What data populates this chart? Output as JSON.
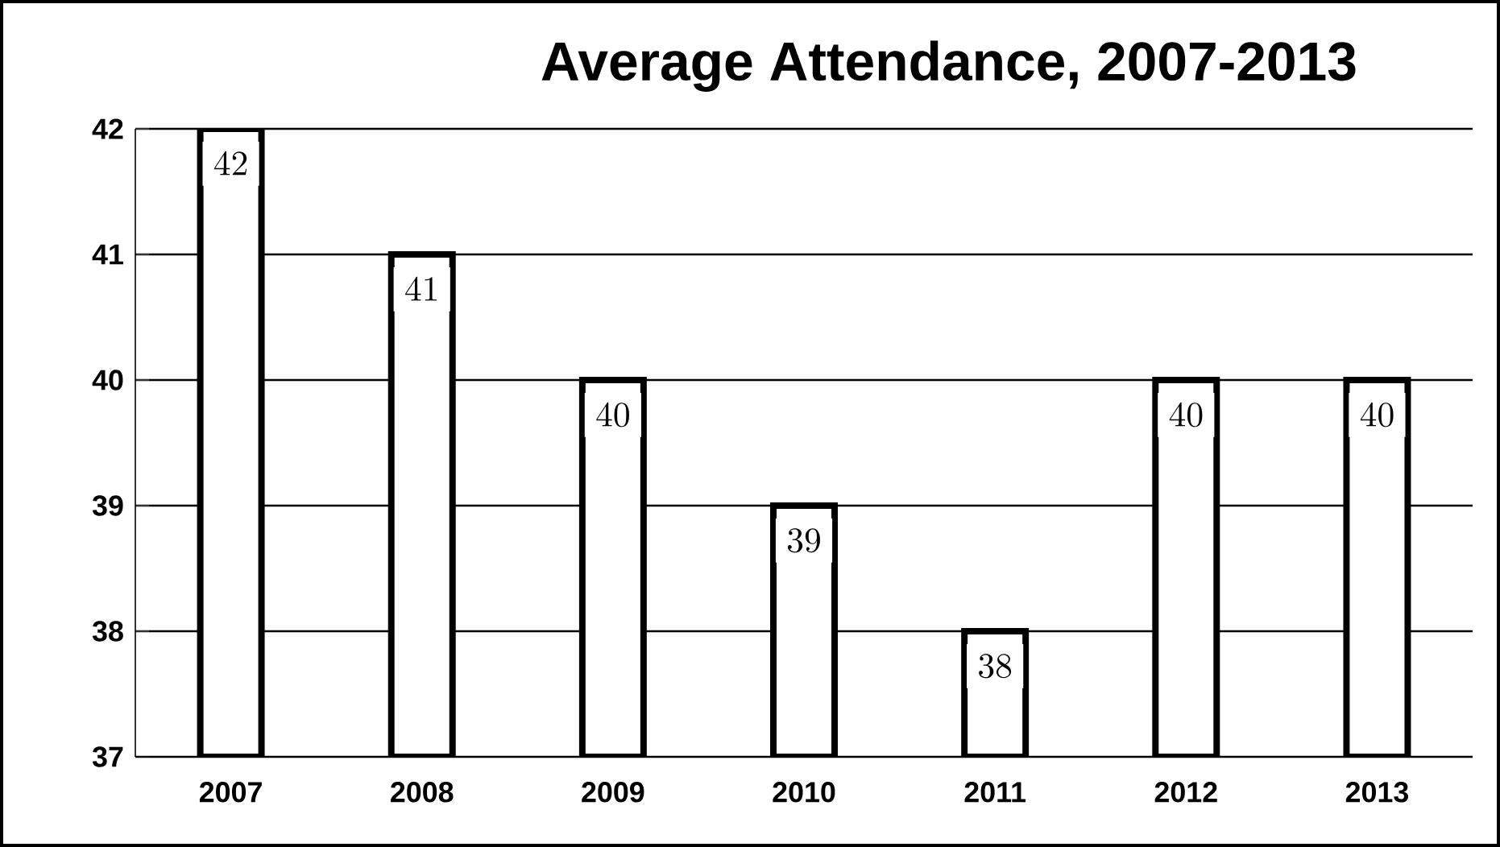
{
  "chart_data": {
    "type": "bar",
    "title": "Average Attendance, 2007-2013",
    "categories": [
      "2007",
      "2008",
      "2009",
      "2010",
      "2011",
      "2012",
      "2013"
    ],
    "values": [
      42,
      41,
      40,
      39,
      38,
      40,
      40
    ],
    "color": "#ffffff",
    "ylim": [
      37,
      42
    ],
    "yticks": [
      37,
      38,
      39,
      40,
      41,
      42
    ],
    "grid": "y",
    "data_labels": true
  }
}
